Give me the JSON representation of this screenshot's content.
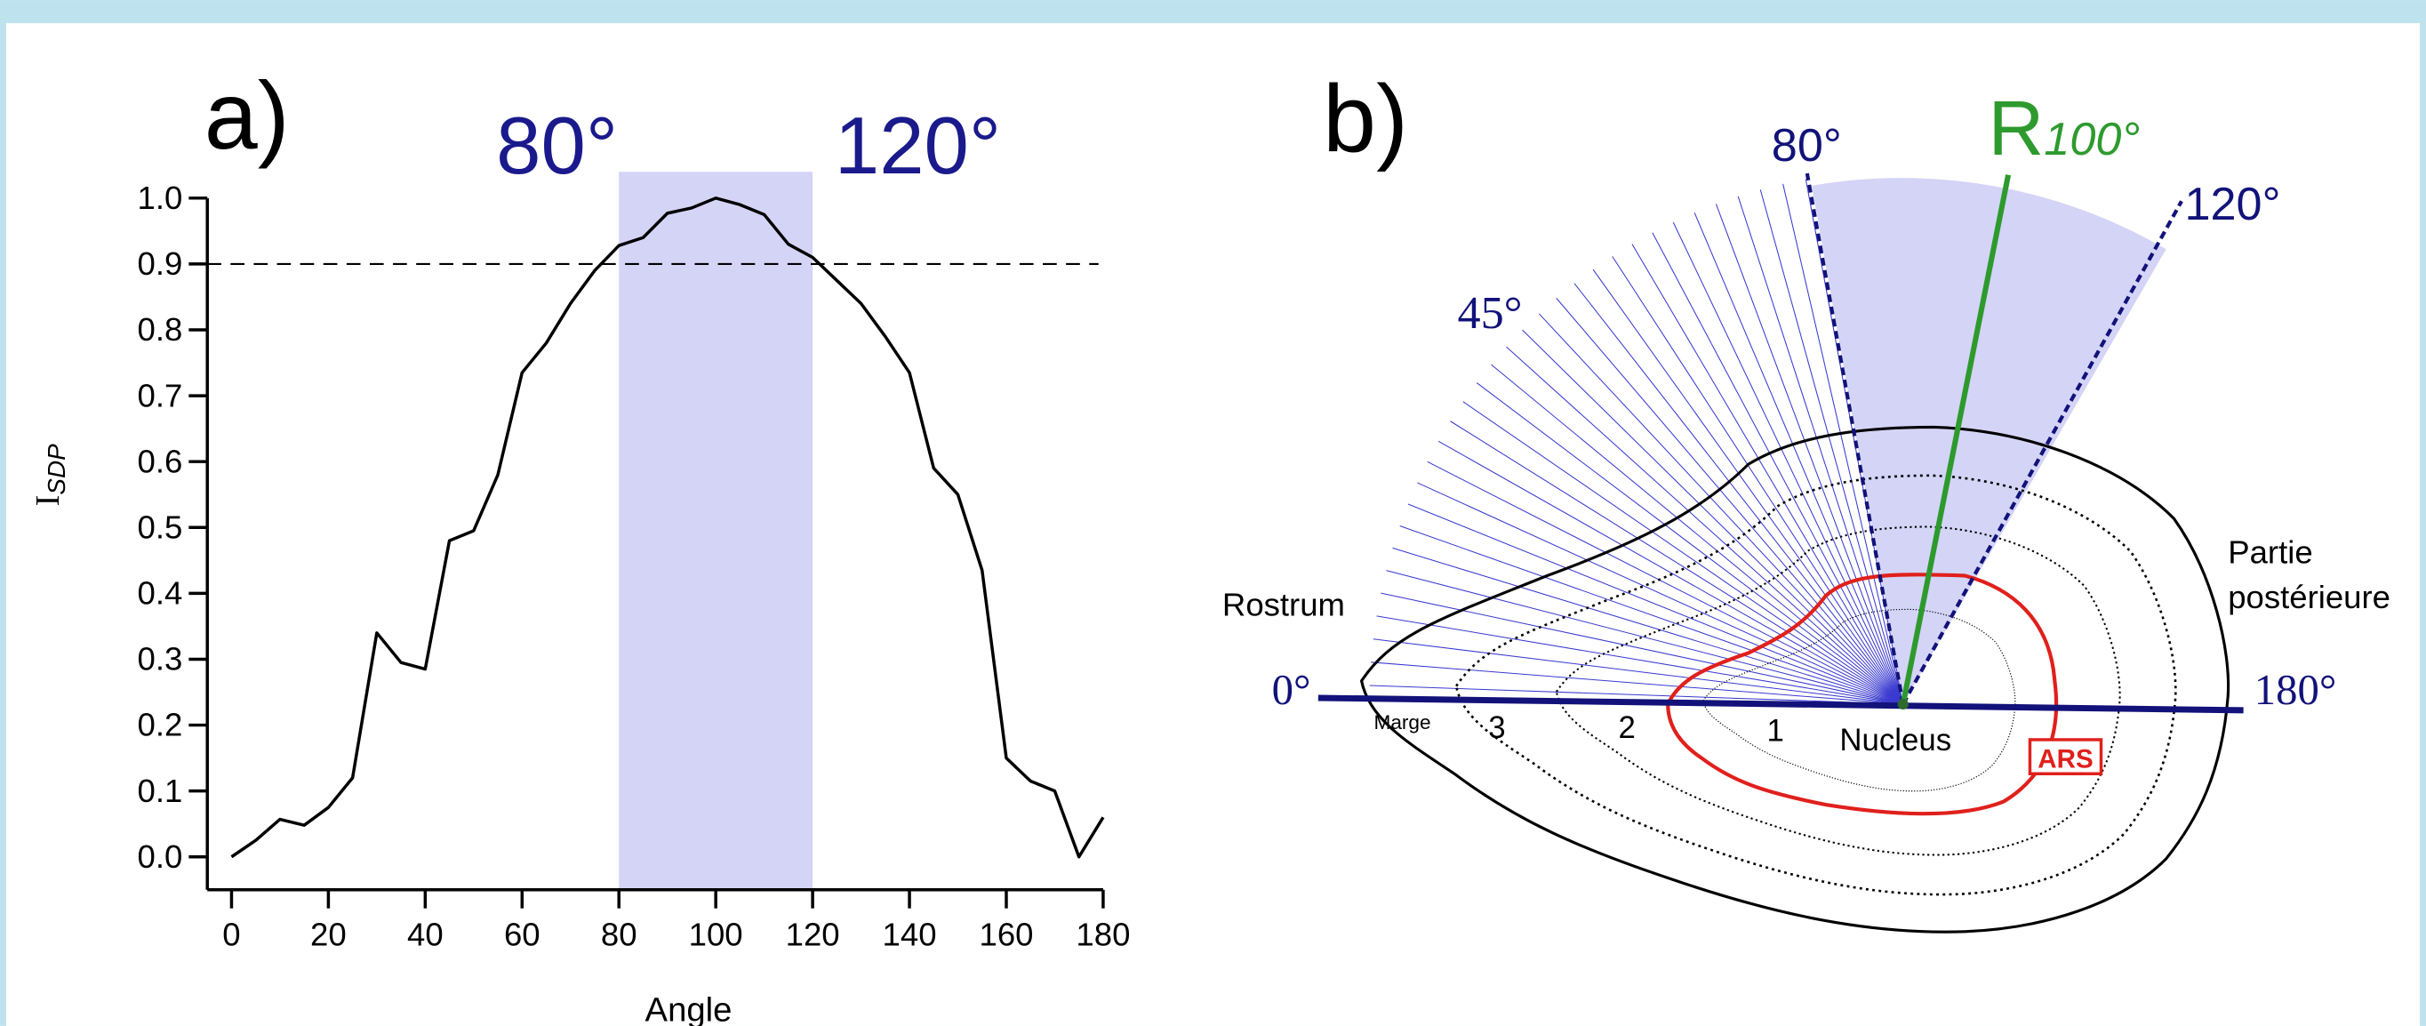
{
  "chart_data": {
    "type": "line",
    "panel_label": "a)",
    "xlabel": "Angle",
    "ylabel": "I",
    "ylabel_sub": "SDP",
    "x": [
      0,
      5,
      10,
      15,
      20,
      25,
      30,
      35,
      40,
      45,
      50,
      55,
      60,
      65,
      70,
      75,
      80,
      85,
      90,
      95,
      100,
      105,
      110,
      115,
      120,
      125,
      130,
      135,
      140,
      145,
      150,
      155,
      160,
      165,
      170,
      175,
      180
    ],
    "values": [
      0.0,
      0.025,
      0.057,
      0.048,
      0.075,
      0.12,
      0.34,
      0.295,
      0.285,
      0.48,
      0.495,
      0.58,
      0.735,
      0.78,
      0.84,
      0.89,
      0.928,
      0.94,
      0.977,
      0.985,
      1.0,
      0.99,
      0.975,
      0.93,
      0.91,
      0.875,
      0.84,
      0.79,
      0.735,
      0.59,
      0.55,
      0.435,
      0.15,
      0.115,
      0.1,
      0.0,
      0.06
    ],
    "color": "#000000",
    "xlim": [
      -5,
      180
    ],
    "ylim": [
      -0.05,
      1.0
    ],
    "xticks": [
      0,
      20,
      40,
      60,
      80,
      100,
      120,
      140,
      160,
      180
    ],
    "yticks": [
      {
        "value": 0,
        "label": "0.0"
      },
      {
        "value": 0.1,
        "label": "0.1"
      },
      {
        "value": 0.2,
        "label": "0.2"
      },
      {
        "value": 0.3,
        "label": "0.3"
      },
      {
        "value": 0.4,
        "label": "0.4"
      },
      {
        "value": 0.5,
        "label": "0.5"
      },
      {
        "value": 0.6,
        "label": "0.6"
      },
      {
        "value": 0.7,
        "label": "0.7"
      },
      {
        "value": 0.8,
        "label": "0.8"
      },
      {
        "value": 0.9,
        "label": "0.9"
      },
      {
        "value": 1,
        "label": "1.0"
      }
    ],
    "band": {
      "from": 80,
      "to": 120,
      "color": "#d4d4f7",
      "labels": [
        "80°",
        "120°"
      ]
    },
    "threshold": {
      "value": 0.9,
      "style": "dashed"
    }
  },
  "diagram": {
    "panel_label": "b)",
    "angle_labels": {
      "a0": "0°",
      "a45": "45°",
      "a80": "80°",
      "a120": "120°",
      "a180": "180°"
    },
    "r_label": "R",
    "r_sub": "100°",
    "rostrum": "Rostrum",
    "posterior": [
      "Partie",
      "postérieure"
    ],
    "zones": [
      "Marge",
      "3",
      "2",
      "1",
      "Nucleus"
    ],
    "ars": "ARS"
  }
}
